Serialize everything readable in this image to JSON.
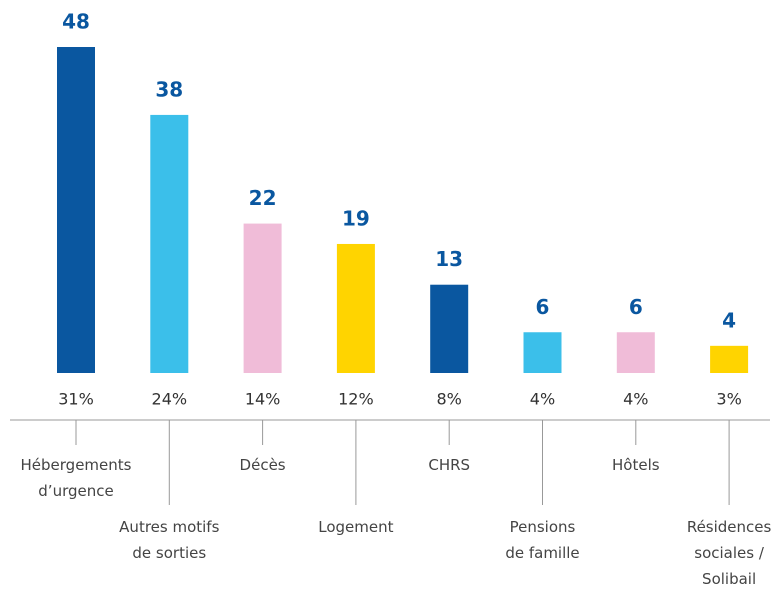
{
  "chart_data": {
    "type": "bar",
    "categories": [
      [
        "Hébergements",
        "d’urgence"
      ],
      [
        "Autres motifs",
        "de sorties"
      ],
      [
        "Décès"
      ],
      [
        "Logement"
      ],
      [
        "CHRS"
      ],
      [
        "Pensions",
        "de famille"
      ],
      [
        "Hôtels"
      ],
      [
        "Résidences",
        "sociales /",
        "Solibail"
      ]
    ],
    "values": [
      48,
      38,
      22,
      19,
      13,
      6,
      6,
      4
    ],
    "shares": [
      31,
      24,
      14,
      12,
      8,
      4,
      4,
      3
    ],
    "share_labels": [
      "31%",
      "24%",
      "14%",
      "12%",
      "8%",
      "4%",
      "4%",
      "3%"
    ],
    "colors": [
      "#0a57a0",
      "#3bbfea",
      "#f0bcd8",
      "#ffd400",
      "#0a57a0",
      "#3bbfea",
      "#f0bcd8",
      "#ffd400"
    ]
  }
}
